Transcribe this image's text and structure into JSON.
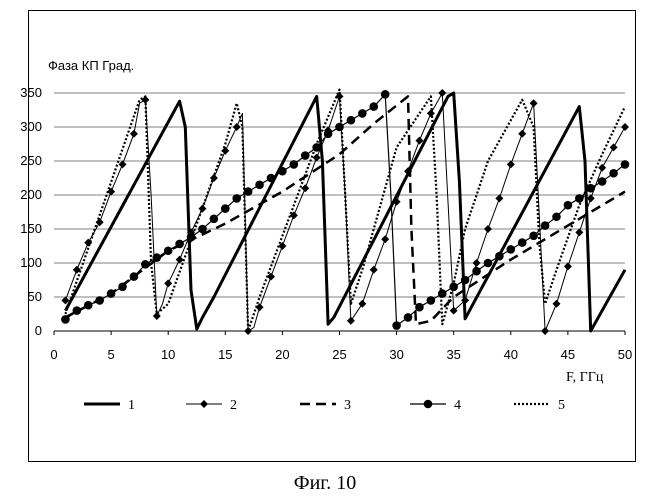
{
  "caption": "Фиг. 10",
  "chart_data": {
    "type": "line",
    "ylabel": "Фаза КП Град.",
    "xlabel": "F, ГГц",
    "xlim": [
      0,
      50
    ],
    "ylim": [
      0,
      350
    ],
    "x_ticks": [
      0,
      5,
      10,
      15,
      20,
      25,
      30,
      35,
      40,
      45,
      50
    ],
    "y_ticks": [
      0,
      50,
      100,
      150,
      200,
      250,
      300,
      350
    ],
    "grid": "horizontal",
    "legend_position": "bottom",
    "series": [
      {
        "name": "1",
        "style": "solid-thick",
        "points": [
          [
            1,
            30
          ],
          [
            11,
            338
          ],
          [
            11.5,
            300
          ],
          [
            12,
            60
          ],
          [
            12.5,
            3
          ],
          [
            13,
            20
          ],
          [
            14,
            50
          ],
          [
            23,
            345
          ],
          [
            23.5,
            250
          ],
          [
            24,
            10
          ],
          [
            24.5,
            20
          ],
          [
            34.5,
            345
          ],
          [
            35,
            350
          ],
          [
            35.5,
            220
          ],
          [
            36,
            18
          ],
          [
            46,
            330
          ],
          [
            46.5,
            250
          ],
          [
            47,
            0
          ],
          [
            47.5,
            15
          ],
          [
            50,
            90
          ]
        ]
      },
      {
        "name": "2",
        "style": "solid-diamond",
        "points": [
          [
            1,
            45
          ],
          [
            2,
            90
          ],
          [
            3,
            130
          ],
          [
            4,
            160
          ],
          [
            5,
            205
          ],
          [
            6,
            245
          ],
          [
            7,
            290
          ],
          [
            7.5,
            335
          ],
          [
            8,
            340
          ],
          [
            8.5,
            200
          ],
          [
            9,
            22
          ],
          [
            9.5,
            40
          ],
          [
            10,
            70
          ],
          [
            11,
            105
          ],
          [
            12,
            145
          ],
          [
            13,
            180
          ],
          [
            14,
            225
          ],
          [
            15,
            265
          ],
          [
            16,
            300
          ],
          [
            16.5,
            320
          ],
          [
            17,
            0
          ],
          [
            17.5,
            5
          ],
          [
            18,
            35
          ],
          [
            19,
            80
          ],
          [
            20,
            125
          ],
          [
            21,
            170
          ],
          [
            22,
            210
          ],
          [
            23,
            255
          ],
          [
            24,
            295
          ],
          [
            25,
            345
          ],
          [
            25.5,
            200
          ],
          [
            26,
            15
          ],
          [
            27,
            40
          ],
          [
            28,
            90
          ],
          [
            29,
            135
          ],
          [
            30,
            190
          ],
          [
            31,
            235
          ],
          [
            32,
            280
          ],
          [
            33,
            320
          ],
          [
            34,
            350
          ],
          [
            35,
            30
          ],
          [
            36,
            45
          ],
          [
            37,
            100
          ],
          [
            38,
            150
          ],
          [
            39,
            195
          ],
          [
            40,
            245
          ],
          [
            41,
            290
          ],
          [
            42,
            335
          ],
          [
            43,
            0
          ],
          [
            44,
            40
          ],
          [
            45,
            95
          ],
          [
            46,
            145
          ],
          [
            47,
            195
          ],
          [
            48,
            240
          ],
          [
            49,
            270
          ],
          [
            50,
            300
          ]
        ]
      },
      {
        "name": "3",
        "style": "dashed-thick",
        "points": [
          [
            1,
            20
          ],
          [
            5,
            55
          ],
          [
            10,
            118
          ],
          [
            15,
            158
          ],
          [
            20,
            205
          ],
          [
            25,
            260
          ],
          [
            28,
            305
          ],
          [
            31,
            345
          ],
          [
            31.3,
            150
          ],
          [
            31.7,
            10
          ],
          [
            33,
            15
          ],
          [
            35,
            50
          ],
          [
            40,
            105
          ],
          [
            45,
            155
          ],
          [
            50,
            205
          ]
        ]
      },
      {
        "name": "4",
        "style": "solid-circle",
        "points": [
          [
            1,
            17
          ],
          [
            2,
            30
          ],
          [
            3,
            38
          ],
          [
            4,
            45
          ],
          [
            5,
            55
          ],
          [
            6,
            65
          ],
          [
            7,
            80
          ],
          [
            8,
            98
          ],
          [
            9,
            108
          ],
          [
            10,
            118
          ],
          [
            11,
            128
          ],
          [
            12,
            138
          ],
          [
            13,
            150
          ],
          [
            14,
            165
          ],
          [
            15,
            180
          ],
          [
            16,
            195
          ],
          [
            17,
            205
          ],
          [
            18,
            215
          ],
          [
            19,
            225
          ],
          [
            20,
            235
          ],
          [
            21,
            245
          ],
          [
            22,
            258
          ],
          [
            23,
            270
          ],
          [
            24,
            290
          ],
          [
            25,
            300
          ],
          [
            26,
            310
          ],
          [
            27,
            320
          ],
          [
            28,
            330
          ],
          [
            29,
            348
          ],
          [
            29.5,
            200
          ],
          [
            30,
            8
          ],
          [
            31,
            20
          ],
          [
            32,
            35
          ],
          [
            33,
            45
          ],
          [
            34,
            55
          ],
          [
            35,
            65
          ],
          [
            36,
            75
          ],
          [
            37,
            88
          ],
          [
            38,
            100
          ],
          [
            39,
            110
          ],
          [
            40,
            120
          ],
          [
            41,
            130
          ],
          [
            42,
            140
          ],
          [
            43,
            155
          ],
          [
            44,
            168
          ],
          [
            45,
            185
          ],
          [
            46,
            195
          ],
          [
            47,
            210
          ],
          [
            48,
            220
          ],
          [
            49,
            232
          ],
          [
            50,
            245
          ]
        ]
      },
      {
        "name": "5",
        "style": "dotted",
        "points": [
          [
            1,
            25
          ],
          [
            7.5,
            340
          ],
          [
            8,
            345
          ],
          [
            8.5,
            100
          ],
          [
            9,
            25
          ],
          [
            10,
            40
          ],
          [
            15,
            275
          ],
          [
            16,
            335
          ],
          [
            16.5,
            300
          ],
          [
            17,
            0
          ],
          [
            18,
            50
          ],
          [
            23,
            275
          ],
          [
            25,
            355
          ],
          [
            25.5,
            200
          ],
          [
            26,
            40
          ],
          [
            27,
            90
          ],
          [
            30,
            270
          ],
          [
            33,
            345
          ],
          [
            33.5,
            200
          ],
          [
            34,
            10
          ],
          [
            35,
            70
          ],
          [
            36,
            150
          ],
          [
            38,
            250
          ],
          [
            41,
            340
          ],
          [
            42,
            300
          ],
          [
            42.5,
            130
          ],
          [
            43,
            40
          ],
          [
            44,
            90
          ],
          [
            46,
            185
          ],
          [
            48,
            260
          ],
          [
            50,
            330
          ]
        ]
      }
    ]
  }
}
